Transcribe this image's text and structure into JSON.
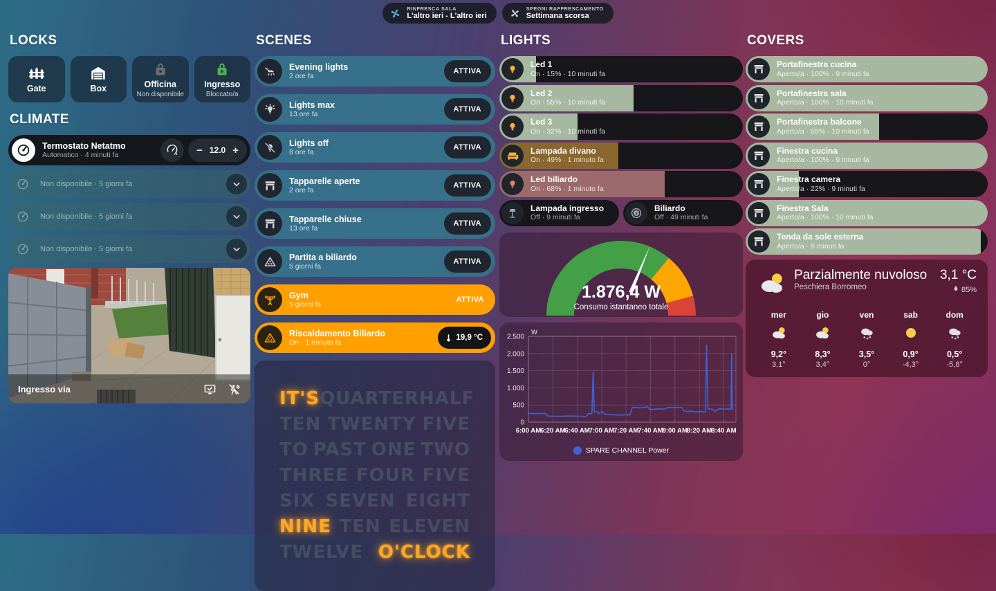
{
  "top_actions": [
    {
      "label": "RINFRESCA SALA",
      "sublabel": "L'altro ieri - L'altro ieri",
      "icon": "fan-icon",
      "icon_color": "#4fb2e0"
    },
    {
      "label": "SPEGNI RAFFRESCAMENTO",
      "sublabel": "Settimana scorsa",
      "icon": "fan-off-icon",
      "icon_color": "#c9ced4"
    }
  ],
  "locks": {
    "title": "LOCKS",
    "items": [
      {
        "name": "Gate",
        "status": "",
        "icon": "fence-icon",
        "icon_color": "#ffffff"
      },
      {
        "name": "Box",
        "status": "",
        "icon": "garage-icon",
        "icon_color": "#ffffff"
      },
      {
        "name": "Officina",
        "status": "Non disponibile",
        "icon": "lock-icon",
        "icon_color": "#6d6d6d"
      },
      {
        "name": "Ingresso",
        "status": "Bloccato/a",
        "icon": "lock-icon",
        "icon_color": "#4caf50"
      }
    ]
  },
  "climate": {
    "title": "CLIMATE",
    "thermostat": {
      "name": "Termostato Netatmo",
      "status": "Automatico · 4 minuti fa",
      "setpoint": "12.0",
      "minus": "−",
      "plus": "+",
      "mode_icon": "thermostat-auto-icon",
      "left_icon": "gauge-icon"
    },
    "unavailable_rows": [
      {
        "status": "Non disponibile · 5 giorni fa"
      },
      {
        "status": "Non disponibile · 5 giorni fa"
      },
      {
        "status": "Non disponibile · 5 giorni fa"
      }
    ]
  },
  "camera": {
    "name": "Ingresso via",
    "icons": [
      "monitor-check-icon",
      "motion-off-icon"
    ]
  },
  "scenes": {
    "title": "SCENES",
    "items": [
      {
        "name": "Evening lights",
        "status": "2 ore fa",
        "action": "ATTIVA",
        "icon": "ceiling-light-icon",
        "style": "teal",
        "action_style": "pill"
      },
      {
        "name": "Lights max",
        "status": "13 ore fa",
        "action": "ATTIVA",
        "icon": "lightbulb-on-icon",
        "style": "teal",
        "action_style": "pill"
      },
      {
        "name": "Lights off",
        "status": "8 ore fa",
        "action": "ATTIVA",
        "icon": "lightbulb-off-icon",
        "style": "teal",
        "action_style": "pill"
      },
      {
        "name": "Tapparelle aperte",
        "status": "2 ore fa",
        "action": "ATTIVA",
        "icon": "shutter-open-icon",
        "style": "teal",
        "action_style": "pill"
      },
      {
        "name": "Tapparelle chiuse",
        "status": "13 ore fa",
        "action": "ATTIVA",
        "icon": "shutter-icon",
        "style": "teal",
        "action_style": "pill"
      },
      {
        "name": "Partita a biliardo",
        "status": "5 giorni fa",
        "action": "ATTIVA",
        "icon": "billiards-icon",
        "style": "teal",
        "action_style": "pill"
      },
      {
        "name": "Gym",
        "status": "5 giorni fa",
        "action": "ATTIVA",
        "icon": "weightlifter-icon",
        "style": "orange",
        "action_style": "text",
        "icon_color": "#ffa000"
      },
      {
        "name": "Riscaldamento Biliardo",
        "status": "On · 1 minuto fa",
        "action": "19,9 °C",
        "icon": "billiards-icon",
        "style": "orange",
        "action_style": "badge",
        "action_icon": "thermometer-icon",
        "icon_color": "#ffa000"
      }
    ]
  },
  "word_clock": {
    "active_color": "#ffa726",
    "lines": [
      [
        {
          "text": "IT'S",
          "active": true
        },
        {
          "text": "QUARTER",
          "active": false
        },
        {
          "text": "HALF",
          "active": false
        }
      ],
      [
        {
          "text": "TEN",
          "active": false
        },
        {
          "text": "TWENTY",
          "active": false
        },
        {
          "text": "FIVE",
          "active": false
        }
      ],
      [
        {
          "text": "TO",
          "active": false
        },
        {
          "text": "PAST",
          "active": false
        },
        {
          "text": "ONE",
          "active": false
        },
        {
          "text": "TWO",
          "active": false
        }
      ],
      [
        {
          "text": "THREE",
          "active": false
        },
        {
          "text": "FOUR",
          "active": false
        },
        {
          "text": "FIVE",
          "active": false
        }
      ],
      [
        {
          "text": "SIX",
          "active": false
        },
        {
          "text": "SEVEN",
          "active": false
        },
        {
          "text": "EIGHT",
          "active": false
        }
      ],
      [
        {
          "text": "NINE",
          "active": true
        },
        {
          "text": "TEN",
          "active": false
        },
        {
          "text": "ELEVEN",
          "active": false
        }
      ],
      [
        {
          "text": "TWELVE",
          "active": false
        },
        {
          "text": "O'CLOCK",
          "active": true
        }
      ]
    ]
  },
  "lights": {
    "title": "LIGHTS",
    "sliders": [
      {
        "name": "Led 1",
        "status": "On · 15% · 10 minuti fa",
        "percent": 15,
        "fill": "#a7b8a0",
        "icon": "lightbulb-icon",
        "icon_color": "#ffb13b"
      },
      {
        "name": "Led 2",
        "status": "On · 55% · 10 minuti fa",
        "percent": 55,
        "fill": "#a7b8a0",
        "icon": "lightbulb-icon",
        "icon_color": "#ffb13b"
      },
      {
        "name": "Led 3",
        "status": "On · 32% · 10 minuti fa",
        "percent": 32,
        "fill": "#a7b8a0",
        "icon": "lightbulb-icon",
        "icon_color": "#ffb13b"
      },
      {
        "name": "Lampada divano",
        "status": "On · 49% · 1 minuto fa",
        "percent": 49,
        "fill": "#8a672e",
        "icon": "sofa-icon",
        "icon_color": "#ffb13b"
      },
      {
        "name": "Led biliardo",
        "status": "On · 68% · 1 minuto fa",
        "percent": 68,
        "fill": "#9d6a6b",
        "icon": "lightbulb-icon",
        "icon_color": "#e87e74"
      }
    ],
    "tiles": [
      {
        "name": "Lampada ingresso",
        "status": "Off · 9 minuti fa",
        "icon": "floor-lamp-icon",
        "icon_color": "#aab0b6"
      },
      {
        "name": "Biliardo",
        "status": "Off · 49 minuti fa",
        "icon": "eight-ball-icon",
        "icon_color": "#aab0b6"
      }
    ]
  },
  "gauge": {
    "value": "1.876,4 W",
    "label": "Consumo istantaneo totale",
    "value_num": 1876.4,
    "min": 0,
    "max": 3000,
    "segments": [
      {
        "from": 0,
        "to": 0.72,
        "color": "#43a047"
      },
      {
        "from": 0.72,
        "to": 0.915,
        "color": "#ffa600"
      },
      {
        "from": 0.915,
        "to": 1,
        "color": "#db4437"
      }
    ]
  },
  "chart_data": {
    "type": "line",
    "unit": "W",
    "series": [
      {
        "name": "SPARE CHANNEL Power",
        "color": "#3e63d8",
        "points": [
          [
            0,
            255
          ],
          [
            2,
            250
          ],
          [
            14,
            250
          ],
          [
            16,
            175
          ],
          [
            28,
            170
          ],
          [
            31,
            180
          ],
          [
            44,
            170
          ],
          [
            47,
            160
          ],
          [
            49,
            245
          ],
          [
            52,
            250
          ],
          [
            53,
            1450
          ],
          [
            54,
            290
          ],
          [
            56,
            300
          ],
          [
            58,
            255
          ],
          [
            60,
            310
          ],
          [
            62,
            250
          ],
          [
            64,
            225
          ],
          [
            68,
            215
          ],
          [
            72,
            210
          ],
          [
            76,
            205
          ],
          [
            80,
            215
          ],
          [
            83,
            205
          ],
          [
            85,
            420
          ],
          [
            88,
            430
          ],
          [
            91,
            415
          ],
          [
            94,
            425
          ],
          [
            97,
            450
          ],
          [
            98,
            440
          ],
          [
            99,
            375
          ],
          [
            102,
            370
          ],
          [
            105,
            385
          ],
          [
            108,
            390
          ],
          [
            111,
            370
          ],
          [
            114,
            425
          ],
          [
            117,
            420
          ],
          [
            120,
            430
          ],
          [
            123,
            425
          ],
          [
            126,
            420
          ],
          [
            127,
            330
          ],
          [
            130,
            310
          ],
          [
            133,
            320
          ],
          [
            136,
            305
          ],
          [
            139,
            300
          ],
          [
            142,
            310
          ],
          [
            144,
            290
          ],
          [
            145,
            295
          ],
          [
            146,
            2250
          ],
          [
            147,
            390
          ],
          [
            149,
            385
          ],
          [
            151,
            370
          ],
          [
            153,
            310
          ],
          [
            155,
            375
          ],
          [
            157,
            390
          ],
          [
            160,
            380
          ],
          [
            163,
            385
          ],
          [
            166,
            375
          ],
          [
            166.5,
            2000
          ],
          [
            167,
            385
          ],
          [
            168,
            380
          ]
        ]
      }
    ],
    "x_max": 170,
    "x_ticks": [
      {
        "x": 0,
        "label": "6:00 AM"
      },
      {
        "x": 20,
        "label": "6:20 AM"
      },
      {
        "x": 40,
        "label": "6:40 AM"
      },
      {
        "x": 60,
        "label": "7:00 AM"
      },
      {
        "x": 80,
        "label": "7:20 AM"
      },
      {
        "x": 100,
        "label": "7:40 AM"
      },
      {
        "x": 120,
        "label": "8:00 AM"
      },
      {
        "x": 140,
        "label": "8:20 AM"
      },
      {
        "x": 160,
        "label": "8:40 AM"
      }
    ],
    "y_max": 2500,
    "y_ticks": [
      {
        "v": 0,
        "label": "0"
      },
      {
        "v": 500,
        "label": "500"
      },
      {
        "v": 1000,
        "label": "1.000"
      },
      {
        "v": 1500,
        "label": "1.500"
      },
      {
        "v": 2000,
        "label": "2.000"
      },
      {
        "v": 2500,
        "label": "2.500"
      }
    ],
    "legend": [
      {
        "label": "SPARE CHANNEL Power",
        "color": "#3e63d8"
      }
    ]
  },
  "covers": {
    "title": "COVERS",
    "fill": "#a7b8a0",
    "sliders": [
      {
        "name": "Portafinestra cucina",
        "status": "Aperto/a · 100% · 9 minuti fa",
        "percent": 100,
        "icon": "shutter-icon"
      },
      {
        "name": "Portafinestra sala",
        "status": "Aperto/a · 100% · 10 minuti fa",
        "percent": 100,
        "icon": "shutter-icon"
      },
      {
        "name": "Portafinestra balcone",
        "status": "Aperto/a · 55% · 10 minuti fa",
        "percent": 55,
        "icon": "shutter-icon"
      },
      {
        "name": "Finestra cucina",
        "status": "Aperto/a · 100% · 9 minuti fa",
        "percent": 100,
        "icon": "shutter-icon"
      },
      {
        "name": "Finestra camera",
        "status": "Aperto/a · 22% · 9 minuti fa",
        "percent": 22,
        "icon": "shutter-icon"
      },
      {
        "name": "Finestra Sala",
        "status": "Aperto/a · 100% · 10 minuti fa",
        "percent": 100,
        "icon": "shutter-icon"
      },
      {
        "name": "Tenda da sole esterna",
        "status": "Aperto/a · 9 minuti fa",
        "percent": 97,
        "icon": "shutter-icon"
      }
    ]
  },
  "weather": {
    "condition": "Parzialmente nuvoloso",
    "location": "Peschiera Borromeo",
    "temperature": "3,1 °C",
    "humidity": "85%",
    "icon": "partly-cloudy-icon",
    "forecast": [
      {
        "day": "mer",
        "icon": "partly-cloudy-icon",
        "high": "9,2°",
        "low": "3,1°"
      },
      {
        "day": "gio",
        "icon": "partly-cloudy-icon",
        "high": "8,3°",
        "low": "3,4°"
      },
      {
        "day": "ven",
        "icon": "snowy-icon",
        "high": "3,5°",
        "low": "0°"
      },
      {
        "day": "sab",
        "icon": "sunny-icon",
        "high": "0,9°",
        "low": "-4,3°"
      },
      {
        "day": "dom",
        "icon": "snowy-icon",
        "high": "0,5°",
        "low": "-5,8°"
      }
    ]
  }
}
